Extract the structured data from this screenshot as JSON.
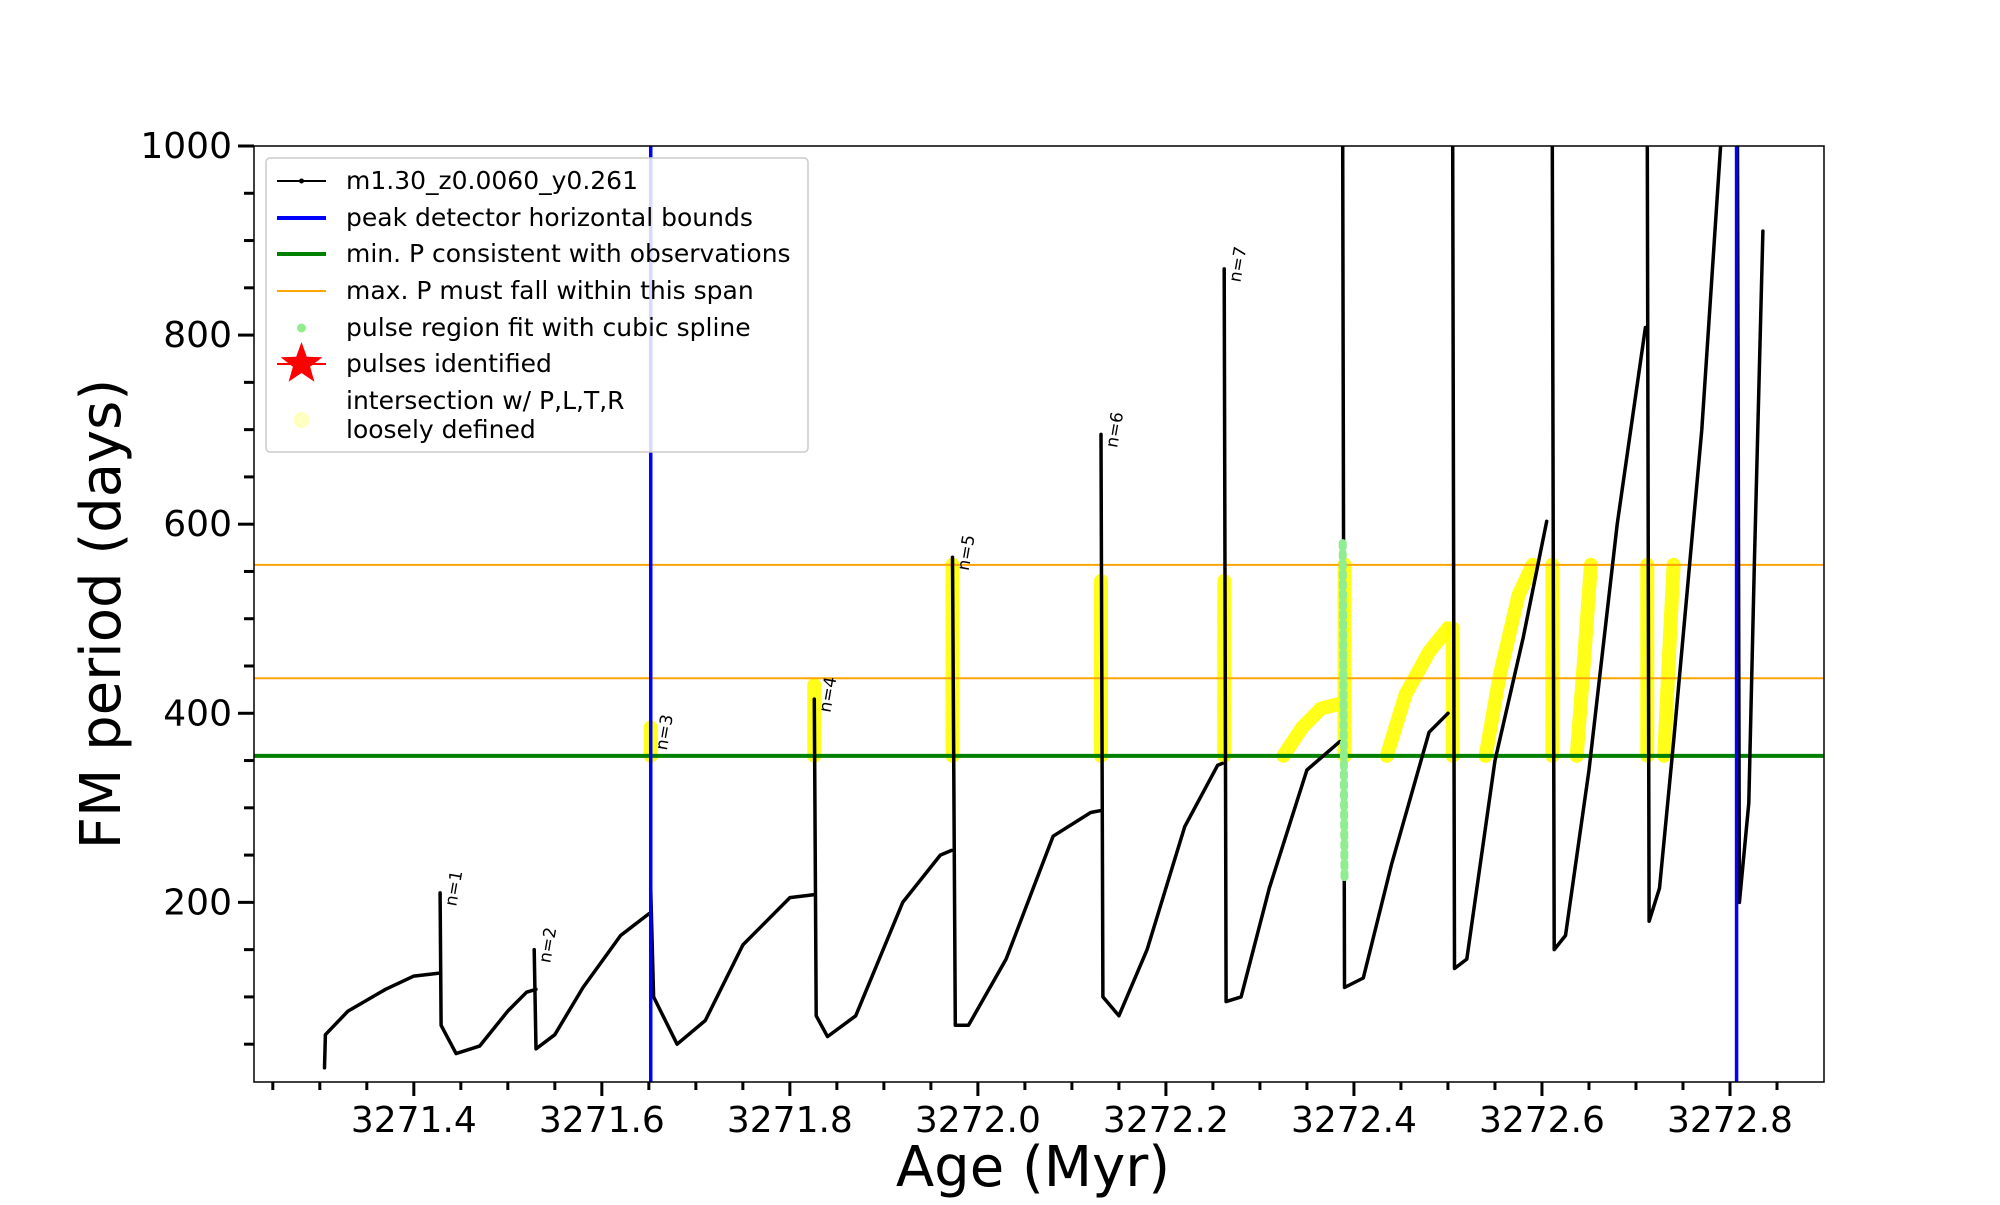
{
  "chart_data": {
    "type": "line",
    "xlabel": "Age (Myr)",
    "ylabel": "FM period (days)",
    "xlim": [
      3271.23,
      3272.9
    ],
    "ylim": [
      10,
      1000
    ],
    "x_ticks": [
      3271.4,
      3271.6,
      3271.8,
      3272.0,
      3272.2,
      3272.4,
      3272.6,
      3272.8
    ],
    "x_tick_labels": [
      "3271.4",
      "3271.6",
      "3271.8",
      "3272.0",
      "3272.2",
      "3272.4",
      "3272.6",
      "3272.8"
    ],
    "y_ticks": [
      200,
      400,
      600,
      800,
      1000
    ],
    "y_tick_labels": [
      "200",
      "400",
      "600",
      "800",
      "1000"
    ],
    "grid": false,
    "legend_position": "upper-left",
    "legend": [
      {
        "label": "m1.30_z0.0060_y0.261",
        "marker": "line-dot",
        "color": "#000000"
      },
      {
        "label": "peak detector horizontal bounds",
        "marker": "line",
        "color": "#0000ff"
      },
      {
        "label": "min. P consistent with observations",
        "marker": "line",
        "color": "#008000"
      },
      {
        "label": "max. P must fall within this span",
        "marker": "thin-line",
        "color": "#ffa500"
      },
      {
        "label": "pulse region fit with cubic spline",
        "marker": "dot",
        "color": "#90ee90"
      },
      {
        "label": "pulses identified",
        "marker": "star",
        "color": "#ff0000"
      },
      {
        "label": "intersection w/ P,L,T,R",
        "label2": "loosely defined",
        "marker": "circle",
        "color": "#ffffc0"
      }
    ],
    "reference_lines": {
      "vertical_blue": [
        3271.652,
        3272.807
      ],
      "horizontal_green": 355,
      "horizontal_orange": [
        437,
        557
      ]
    },
    "colors": {
      "track": "#000000",
      "bounds": "#0000ff",
      "min_p": "#008000",
      "max_p_span": "#ffa500",
      "spline": "#90ee90",
      "intersection": "#ffff00",
      "pulse_star": "#ff0000"
    },
    "series": [
      {
        "name": "m1.30_z0.0060_y0.261",
        "cycles": [
          [
            [
              3271.305,
              25
            ],
            [
              3271.306,
              60
            ],
            [
              3271.33,
              85
            ],
            [
              3271.37,
              108
            ],
            [
              3271.4,
              122
            ],
            [
              3271.426,
              125
            ]
          ],
          [
            [
              3271.428,
              210
            ],
            [
              3271.429,
              70
            ],
            [
              3271.445,
              40
            ],
            [
              3271.47,
              48
            ],
            [
              3271.5,
              85
            ],
            [
              3271.52,
              105
            ],
            [
              3271.53,
              108
            ]
          ],
          [
            [
              3271.528,
              150
            ],
            [
              3271.53,
              45
            ],
            [
              3271.55,
              60
            ],
            [
              3271.58,
              110
            ],
            [
              3271.62,
              165
            ],
            [
              3271.65,
              188
            ]
          ],
          [
            [
              3271.652,
              215
            ],
            [
              3271.655,
              100
            ],
            [
              3271.68,
              50
            ],
            [
              3271.71,
              75
            ],
            [
              3271.75,
              155
            ],
            [
              3271.8,
              205
            ],
            [
              3271.825,
              208
            ]
          ],
          [
            [
              3271.826,
              415
            ],
            [
              3271.828,
              80
            ],
            [
              3271.84,
              58
            ],
            [
              3271.87,
              80
            ],
            [
              3271.92,
              200
            ],
            [
              3271.96,
              250
            ],
            [
              3271.972,
              255
            ]
          ],
          [
            [
              3271.973,
              565
            ],
            [
              3271.976,
              70
            ],
            [
              3271.99,
              70
            ],
            [
              3272.03,
              140
            ],
            [
              3272.08,
              270
            ],
            [
              3272.12,
              295
            ],
            [
              3272.13,
              297
            ]
          ],
          [
            [
              3272.131,
              695
            ],
            [
              3272.133,
              100
            ],
            [
              3272.15,
              80
            ],
            [
              3272.18,
              150
            ],
            [
              3272.22,
              280
            ],
            [
              3272.255,
              345
            ],
            [
              3272.26,
              347
            ]
          ],
          [
            [
              3272.262,
              870
            ],
            [
              3272.264,
              95
            ],
            [
              3272.28,
              100
            ],
            [
              3272.31,
              215
            ],
            [
              3272.35,
              340
            ],
            [
              3272.385,
              370
            ]
          ],
          [
            [
              3272.388,
              1000
            ],
            [
              3272.39,
              110
            ],
            [
              3272.41,
              120
            ],
            [
              3272.44,
              240
            ],
            [
              3272.48,
              380
            ],
            [
              3272.5,
              400
            ]
          ],
          [
            [
              3272.505,
              1000
            ],
            [
              3272.507,
              130
            ],
            [
              3272.52,
              140
            ],
            [
              3272.55,
              350
            ],
            [
              3272.58,
              480
            ],
            [
              3272.605,
              603
            ]
          ],
          [
            [
              3272.611,
              1000
            ],
            [
              3272.613,
              150
            ],
            [
              3272.625,
              165
            ],
            [
              3272.65,
              340
            ],
            [
              3272.68,
              600
            ],
            [
              3272.71,
              808
            ]
          ],
          [
            [
              3272.712,
              1000
            ],
            [
              3272.714,
              180
            ],
            [
              3272.725,
              215
            ],
            [
              3272.74,
              370
            ],
            [
              3272.77,
              700
            ],
            [
              3272.79,
              1000
            ]
          ],
          [
            [
              3272.808,
              1000
            ],
            [
              3272.81,
              200
            ],
            [
              3272.82,
              305
            ],
            [
              3272.826,
              560
            ],
            [
              3272.835,
              910
            ]
          ]
        ]
      },
      {
        "name": "pulse region fit with cubic spline",
        "segments": [
          [
            [
              3272.388,
              580
            ],
            [
              3272.39,
              225
            ]
          ]
        ]
      },
      {
        "name": "intersection w/ P,L,T,R",
        "segments": [
          [
            [
              3271.652,
              355
            ],
            [
              3271.652,
              385
            ]
          ],
          [
            [
              3271.826,
              355
            ],
            [
              3271.826,
              430
            ]
          ],
          [
            [
              3271.973,
              355
            ],
            [
              3271.973,
              557
            ]
          ],
          [
            [
              3272.131,
              355
            ],
            [
              3272.131,
              540
            ]
          ],
          [
            [
              3272.262,
              355
            ],
            [
              3272.262,
              540
            ]
          ],
          [
            [
              3272.39,
              355
            ],
            [
              3272.39,
              557
            ]
          ],
          [
            [
              3272.325,
              355
            ],
            [
              3272.345,
              385
            ],
            [
              3272.365,
              405
            ],
            [
              3272.385,
              410
            ]
          ],
          [
            [
              3272.435,
              355
            ],
            [
              3272.455,
              420
            ],
            [
              3272.48,
              465
            ],
            [
              3272.5,
              490
            ]
          ],
          [
            [
              3272.505,
              355
            ],
            [
              3272.505,
              490
            ]
          ],
          [
            [
              3272.54,
              355
            ],
            [
              3272.555,
              440
            ],
            [
              3272.575,
              525
            ],
            [
              3272.59,
              557
            ]
          ],
          [
            [
              3272.611,
              355
            ],
            [
              3272.611,
              557
            ]
          ],
          [
            [
              3272.637,
              355
            ],
            [
              3272.645,
              460
            ],
            [
              3272.652,
              557
            ]
          ],
          [
            [
              3272.712,
              355
            ],
            [
              3272.712,
              557
            ]
          ],
          [
            [
              3272.73,
              355
            ],
            [
              3272.735,
              460
            ],
            [
              3272.74,
              557
            ]
          ]
        ]
      }
    ],
    "annotations": [
      {
        "text": "n=1",
        "x": 3271.428,
        "y": 210
      },
      {
        "text": "n=2",
        "x": 3271.528,
        "y": 150
      },
      {
        "text": "n=3",
        "x": 3271.652,
        "y": 375
      },
      {
        "text": "n=4",
        "x": 3271.826,
        "y": 415
      },
      {
        "text": "n=5",
        "x": 3271.973,
        "y": 565
      },
      {
        "text": "n=6",
        "x": 3272.131,
        "y": 695
      },
      {
        "text": "n=7",
        "x": 3272.262,
        "y": 870
      }
    ]
  }
}
